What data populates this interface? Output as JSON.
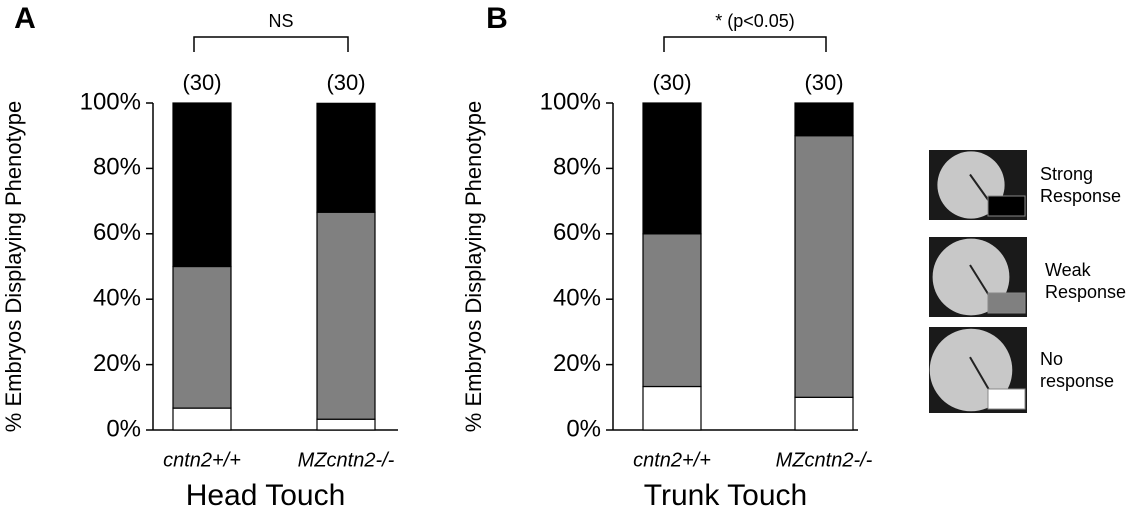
{
  "chart_data": [
    {
      "type": "bar",
      "stacked": true,
      "panel": "A",
      "title": "Head Touch",
      "y_label": "% Embryos Displaying Phenotype",
      "categories": [
        "cntn2+/+",
        "MZcntn2-/-"
      ],
      "series": [
        {
          "color": "#ffffff",
          "values": [
            6.7,
            3.3
          ]
        },
        {
          "color": "#808080",
          "values": [
            43.3,
            63.3
          ]
        },
        {
          "color": "#000000",
          "values": [
            50,
            33.3
          ]
        }
      ],
      "n": {
        "values": [
          30,
          30
        ],
        "value_labels": [
          "(30)",
          "(30)"
        ]
      },
      "annotation": "NS",
      "ylim": [
        0,
        100
      ],
      "yticks": [
        {
          "value": 0,
          "label": "0%"
        },
        {
          "value": 20,
          "label": "20%"
        },
        {
          "value": 40,
          "label": "40%"
        },
        {
          "value": 60,
          "label": "60%"
        },
        {
          "value": 80,
          "label": "80%"
        },
        {
          "value": 100,
          "label": "100%"
        }
      ]
    },
    {
      "type": "bar",
      "stacked": true,
      "panel": "B",
      "title": "Trunk Touch",
      "y_label": "% Embryos Displaying Phenotype",
      "categories": [
        "cntn2+/+",
        "MZcntn2-/-"
      ],
      "series": [
        {
          "name": "No response",
          "color": "#ffffff",
          "values": [
            13.3,
            10
          ]
        },
        {
          "name": "Weak Response",
          "color": "#808080",
          "values": [
            46.7,
            80
          ]
        },
        {
          "name": "Strong Response",
          "color": "#000000",
          "values": [
            40,
            10
          ]
        }
      ],
      "n": {
        "values": [
          30,
          30
        ],
        "value_labels": [
          "(30)",
          "(30)"
        ]
      },
      "annotation": "* (p<0.05)",
      "ylim": [
        0,
        100
      ],
      "yticks": [
        {
          "value": 0,
          "label": "0%"
        },
        {
          "value": 20,
          "label": "20%"
        },
        {
          "value": 40,
          "label": "40%"
        },
        {
          "value": 60,
          "label": "60%"
        },
        {
          "value": 80,
          "label": "80%"
        },
        {
          "value": 100,
          "label": "100%"
        }
      ]
    }
  ]
}
